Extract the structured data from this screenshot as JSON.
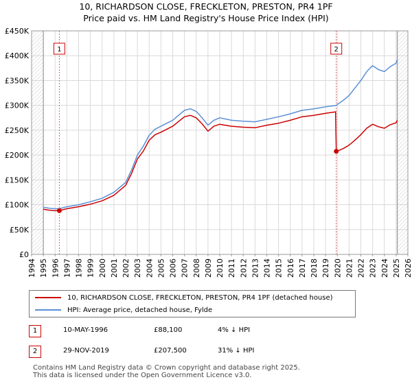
{
  "title_line1": "10, RICHARDSON CLOSE, FRECKLETON, PRESTON, PR4 1PF",
  "title_line2": "Price paid vs. HM Land Registry's House Price Index (HPI)",
  "chart_data": {
    "type": "line",
    "x_range": [
      1994,
      2026
    ],
    "ylim": [
      0,
      450000
    ],
    "x_ticks": [
      "1994",
      "1995",
      "1996",
      "1997",
      "1998",
      "1999",
      "2000",
      "2001",
      "2002",
      "2003",
      "2004",
      "2005",
      "2006",
      "2007",
      "2008",
      "2009",
      "2010",
      "2011",
      "2012",
      "2013",
      "2014",
      "2015",
      "2016",
      "2017",
      "2018",
      "2019",
      "2020",
      "2021",
      "2022",
      "2023",
      "2024",
      "2025",
      "2026"
    ],
    "y_ticks": [
      {
        "value": 0,
        "label": "£0"
      },
      {
        "value": 50000,
        "label": "£50K"
      },
      {
        "value": 100000,
        "label": "£100K"
      },
      {
        "value": 150000,
        "label": "£150K"
      },
      {
        "value": 200000,
        "label": "£200K"
      },
      {
        "value": 250000,
        "label": "£250K"
      },
      {
        "value": 300000,
        "label": "£300K"
      },
      {
        "value": 350000,
        "label": "£350K"
      },
      {
        "value": 400000,
        "label": "£400K"
      },
      {
        "value": 450000,
        "label": "£450K"
      }
    ],
    "grid": true,
    "hatched_ranges": [
      [
        1994,
        1995
      ],
      [
        2025.1,
        2026
      ]
    ],
    "series": [
      {
        "name": "HPI: Average price, detached house, Fylde",
        "color": "#5b8fd6",
        "points": [
          [
            1995.0,
            95000
          ],
          [
            1995.5,
            93000
          ],
          [
            1996.0,
            92000
          ],
          [
            1996.36,
            92000
          ],
          [
            1997.0,
            96000
          ],
          [
            1998.0,
            100000
          ],
          [
            1999.0,
            106000
          ],
          [
            2000.0,
            113000
          ],
          [
            2001.0,
            125000
          ],
          [
            2002.0,
            145000
          ],
          [
            2002.5,
            170000
          ],
          [
            2003.0,
            200000
          ],
          [
            2003.5,
            218000
          ],
          [
            2004.0,
            240000
          ],
          [
            2004.5,
            252000
          ],
          [
            2005.0,
            258000
          ],
          [
            2006.0,
            270000
          ],
          [
            2007.0,
            290000
          ],
          [
            2007.5,
            293000
          ],
          [
            2008.0,
            288000
          ],
          [
            2008.5,
            275000
          ],
          [
            2009.0,
            260000
          ],
          [
            2009.5,
            270000
          ],
          [
            2010.0,
            275000
          ],
          [
            2011.0,
            270000
          ],
          [
            2012.0,
            268000
          ],
          [
            2013.0,
            267000
          ],
          [
            2014.0,
            272000
          ],
          [
            2015.0,
            277000
          ],
          [
            2016.0,
            283000
          ],
          [
            2017.0,
            290000
          ],
          [
            2018.0,
            293000
          ],
          [
            2019.0,
            297000
          ],
          [
            2019.91,
            300000
          ],
          [
            2020.0,
            302000
          ],
          [
            2020.5,
            310000
          ],
          [
            2021.0,
            320000
          ],
          [
            2021.5,
            335000
          ],
          [
            2022.0,
            350000
          ],
          [
            2022.5,
            368000
          ],
          [
            2023.0,
            380000
          ],
          [
            2023.5,
            372000
          ],
          [
            2024.0,
            368000
          ],
          [
            2024.5,
            378000
          ],
          [
            2025.0,
            385000
          ],
          [
            2025.1,
            392000
          ]
        ]
      },
      {
        "name": "10, RICHARDSON CLOSE, FRECKLETON, PRESTON, PR4 1PF (detached house)",
        "color": "#cc0000",
        "points": [
          [
            1995.0,
            91000
          ],
          [
            1995.5,
            89000
          ],
          [
            1996.0,
            88100
          ],
          [
            1996.36,
            88100
          ],
          [
            1997.0,
            92000
          ],
          [
            1998.0,
            96000
          ],
          [
            1999.0,
            101000
          ],
          [
            2000.0,
            108000
          ],
          [
            2001.0,
            119000
          ],
          [
            2002.0,
            139000
          ],
          [
            2002.5,
            163000
          ],
          [
            2003.0,
            192000
          ],
          [
            2003.5,
            208000
          ],
          [
            2004.0,
            230000
          ],
          [
            2004.5,
            241000
          ],
          [
            2005.0,
            246000
          ],
          [
            2006.0,
            258000
          ],
          [
            2007.0,
            277000
          ],
          [
            2007.5,
            280000
          ],
          [
            2008.0,
            275000
          ],
          [
            2008.5,
            263000
          ],
          [
            2009.0,
            248000
          ],
          [
            2009.5,
            258000
          ],
          [
            2010.0,
            262000
          ],
          [
            2011.0,
            258000
          ],
          [
            2012.0,
            256000
          ],
          [
            2013.0,
            255000
          ],
          [
            2014.0,
            260000
          ],
          [
            2015.0,
            264000
          ],
          [
            2016.0,
            270000
          ],
          [
            2017.0,
            277000
          ],
          [
            2018.0,
            280000
          ],
          [
            2019.0,
            284000
          ],
          [
            2019.85,
            287000
          ],
          [
            2019.91,
            207500
          ],
          [
            2020.0,
            208000
          ],
          [
            2020.5,
            213000
          ],
          [
            2021.0,
            220000
          ],
          [
            2021.5,
            230000
          ],
          [
            2022.0,
            241000
          ],
          [
            2022.5,
            254000
          ],
          [
            2023.0,
            262000
          ],
          [
            2023.5,
            257000
          ],
          [
            2024.0,
            254000
          ],
          [
            2024.5,
            261000
          ],
          [
            2025.0,
            265000
          ],
          [
            2025.1,
            270000
          ]
        ]
      }
    ],
    "sales": [
      {
        "id": "1",
        "x": 1996.36,
        "value": 88100
      },
      {
        "id": "2",
        "x": 2019.91,
        "value": 207500
      }
    ]
  },
  "legend": {
    "property_label": "10, RICHARDSON CLOSE, FRECKLETON, PRESTON, PR4 1PF (detached house)",
    "hpi_label": "HPI: Average price, detached house, Fylde",
    "property_color": "#cc0000",
    "hpi_color": "#5b8fd6"
  },
  "annotations": [
    {
      "id": "1",
      "date": "10-MAY-1996",
      "price": "£88,100",
      "hpi_diff": "4% ↓ HPI"
    },
    {
      "id": "2",
      "date": "29-NOV-2019",
      "price": "£207,500",
      "hpi_diff": "31% ↓ HPI"
    }
  ],
  "footer": {
    "line1": "Contains HM Land Registry data © Crown copyright and database right 2025.",
    "line2": "This data is licensed under the Open Government Licence v3.0."
  }
}
